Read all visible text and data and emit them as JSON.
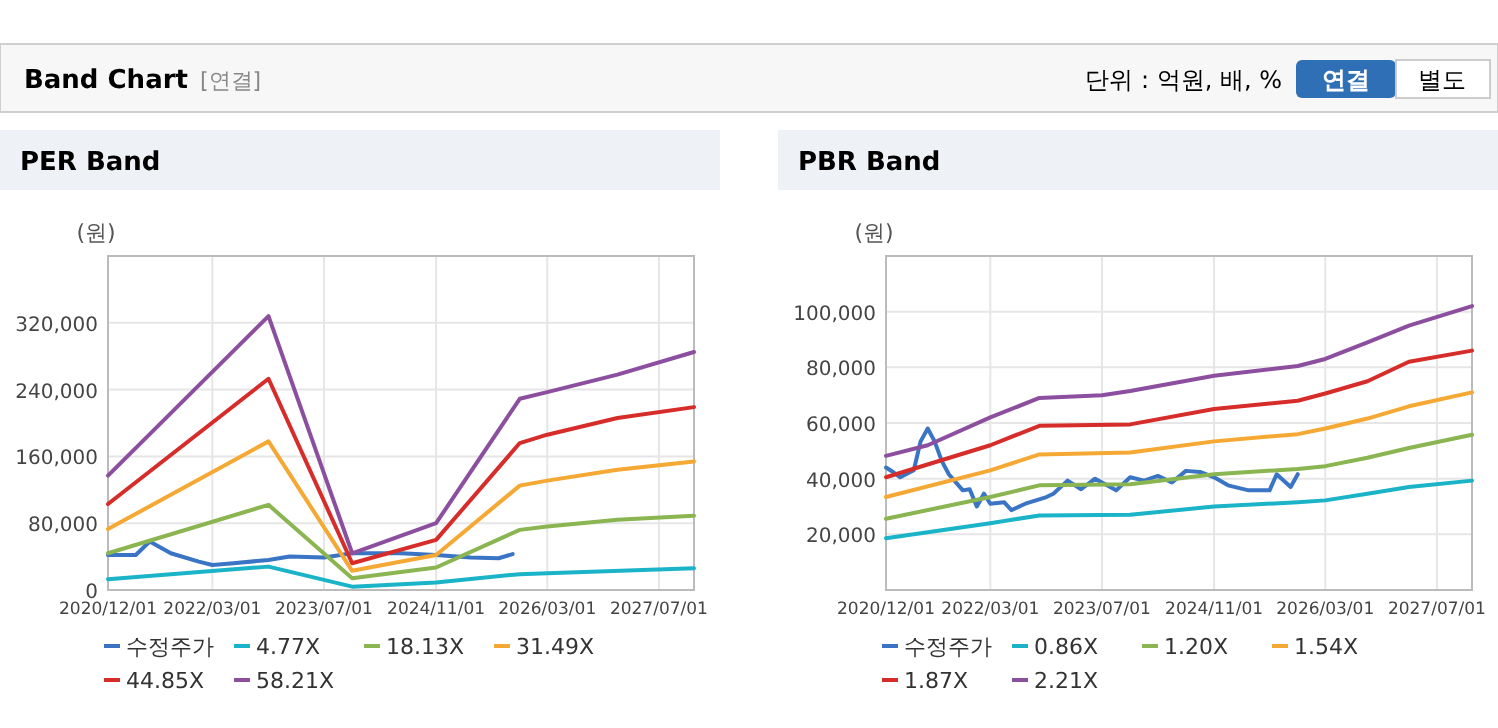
{
  "chart_data": [
    {
      "type": "other",
      "title": "Band Chart",
      "annotations": [
        "[연결]",
        "단위 : 억원, 배, %",
        "연결",
        "별도"
      ]
    },
    {
      "type": "line",
      "title": "PER Band",
      "ylabel": "(원)",
      "xlim": [
        "2020-12-01",
        "2027-12-01"
      ],
      "xticks": [
        {
          "value": "2020-12-01",
          "label": "2020/12/01"
        },
        {
          "value": "2022-03-01",
          "label": "2022/03/01"
        },
        {
          "value": "2023-07-01",
          "label": "2023/07/01"
        },
        {
          "value": "2024-11-01",
          "label": "2024/11/01"
        },
        {
          "value": "2026-03-01",
          "label": "2026/03/01"
        },
        {
          "value": "2027-07-01",
          "label": "2027/07/01"
        }
      ],
      "ylim": [
        0,
        400000
      ],
      "yticks": [
        0,
        {
          "value": 80000,
          "label": "80,000"
        },
        {
          "value": 160000,
          "label": "160,000"
        },
        {
          "value": 240000,
          "label": "240,000"
        },
        {
          "value": 320000,
          "label": "320,000"
        }
      ],
      "grid": true,
      "legend": "bottom",
      "series": [
        {
          "name": "수정주가",
          "color": "#3a74c4",
          "x": [
            "2020-12",
            "2021-04",
            "2021-06",
            "2021-09",
            "2022-01",
            "2022-03",
            "2022-06",
            "2022-11",
            "2023-02",
            "2023-07",
            "2023-11",
            "2024-06",
            "2024-11",
            "2025-04",
            "2025-08",
            "2025-10"
          ],
          "values": [
            42000,
            42000,
            58000,
            44000,
            34000,
            30000,
            32000,
            36000,
            40000,
            39000,
            44000,
            44000,
            42000,
            39000,
            38000,
            43000
          ]
        },
        {
          "name": "4.77X",
          "color": "#1ab3c7",
          "x": [
            "2020-12",
            "2022-11",
            "2023-11",
            "2024-11",
            "2025-11",
            "2026-03",
            "2027-12"
          ],
          "values": [
            13000,
            28000,
            4000,
            9000,
            19000,
            20000,
            26000
          ]
        },
        {
          "name": "18.13X",
          "color": "#8ab551",
          "x": [
            "2020-12",
            "2022-11",
            "2023-11",
            "2024-11",
            "2025-11",
            "2026-03",
            "2027-01",
            "2027-12"
          ],
          "values": [
            44000,
            102000,
            14000,
            27000,
            72000,
            76000,
            84000,
            89000
          ]
        },
        {
          "name": "31.49X",
          "color": "#f5a833",
          "x": [
            "2020-12",
            "2022-11",
            "2023-11",
            "2024-11",
            "2025-11",
            "2026-03",
            "2027-01",
            "2027-12"
          ],
          "values": [
            73000,
            178000,
            23000,
            42000,
            125000,
            131000,
            144000,
            154000
          ]
        },
        {
          "name": "44.85X",
          "color": "#d62d2a",
          "x": [
            "2020-12",
            "2022-11",
            "2023-11",
            "2024-11",
            "2025-11",
            "2026-03",
            "2027-01",
            "2027-12"
          ],
          "values": [
            103000,
            253000,
            32000,
            60000,
            176000,
            186000,
            206000,
            219000
          ]
        },
        {
          "name": "58.21X",
          "color": "#8c4fa0",
          "x": [
            "2020-12",
            "2022-11",
            "2023-11",
            "2024-11",
            "2025-11",
            "2026-03",
            "2027-01",
            "2027-12"
          ],
          "values": [
            137000,
            328000,
            44000,
            80000,
            229000,
            237000,
            258000,
            285000
          ]
        }
      ]
    },
    {
      "type": "line",
      "title": "PBR Band",
      "ylabel": "(원)",
      "xlim": [
        "2020-12-01",
        "2027-12-01"
      ],
      "xticks": [
        {
          "value": "2020-12-01",
          "label": "2020/12/01"
        },
        {
          "value": "2022-03-01",
          "label": "2022/03/01"
        },
        {
          "value": "2023-07-01",
          "label": "2023/07/01"
        },
        {
          "value": "2024-11-01",
          "label": "2024/11/01"
        },
        {
          "value": "2026-03-01",
          "label": "2026/03/01"
        },
        {
          "value": "2027-07-01",
          "label": "2027/07/01"
        }
      ],
      "ylim": [
        0,
        120000
      ],
      "yticks": [
        {
          "value": 20000,
          "label": "20,000"
        },
        {
          "value": 40000,
          "label": "40,000"
        },
        {
          "value": 60000,
          "label": "60,000"
        },
        {
          "value": 80000,
          "label": "80,000"
        },
        {
          "value": 100000,
          "label": "100,000"
        }
      ],
      "grid": true,
      "legend": "bottom",
      "series": [
        {
          "name": "수정주가",
          "color": "#3a74c4",
          "x": [
            "2020-12",
            "2021-01",
            "2021-02",
            "2021-04",
            "2021-05",
            "2021-06",
            "2021-07",
            "2021-08",
            "2021-09",
            "2021-11",
            "2021-12",
            "2022-01",
            "2022-02",
            "2022-03",
            "2022-05",
            "2022-06",
            "2022-08",
            "2022-11",
            "2022-12",
            "2023-02",
            "2023-04",
            "2023-06",
            "2023-09",
            "2023-11",
            "2024-01",
            "2024-03",
            "2024-05",
            "2024-07",
            "2024-09",
            "2024-11",
            "2025-01",
            "2025-04",
            "2025-07",
            "2025-08",
            "2025-10",
            "2025-11"
          ],
          "values": [
            44000,
            42400,
            40500,
            43000,
            53400,
            58000,
            53400,
            46400,
            41600,
            35800,
            36200,
            30000,
            34600,
            31000,
            31500,
            28700,
            31000,
            33400,
            34600,
            39300,
            36200,
            40000,
            35800,
            40500,
            39300,
            41000,
            38600,
            42800,
            42400,
            40500,
            37600,
            35800,
            35800,
            41600,
            37000,
            41600
          ]
        },
        {
          "name": "0.86X",
          "color": "#1ab3c7",
          "x": [
            "2020-12",
            "2022-03",
            "2022-10",
            "2023-11",
            "2024-11",
            "2025-11",
            "2026-03",
            "2026-09",
            "2027-03",
            "2027-12"
          ],
          "values": [
            18600,
            24000,
            26800,
            27000,
            30000,
            31500,
            32200,
            34600,
            37000,
            39300
          ]
        },
        {
          "name": "1.20X",
          "color": "#8ab551",
          "x": [
            "2020-12",
            "2022-03",
            "2022-10",
            "2023-11",
            "2024-11",
            "2025-11",
            "2026-03",
            "2026-09",
            "2027-03",
            "2027-12"
          ],
          "values": [
            25600,
            33400,
            37600,
            38000,
            41600,
            43500,
            44500,
            47500,
            51000,
            55800
          ]
        },
        {
          "name": "1.54X",
          "color": "#f5a833",
          "x": [
            "2020-12",
            "2022-03",
            "2022-10",
            "2023-11",
            "2024-11",
            "2025-11",
            "2026-03",
            "2026-09",
            "2027-03",
            "2027-12"
          ],
          "values": [
            33400,
            43000,
            48700,
            49400,
            53400,
            56000,
            58000,
            61600,
            66000,
            71000
          ]
        },
        {
          "name": "1.87X",
          "color": "#d62d2a",
          "x": [
            "2020-12",
            "2022-03",
            "2022-10",
            "2023-11",
            "2024-11",
            "2025-11",
            "2026-03",
            "2026-09",
            "2027-03",
            "2027-12"
          ],
          "values": [
            40500,
            52000,
            59000,
            59500,
            65000,
            68000,
            70600,
            75000,
            82000,
            86000
          ]
        },
        {
          "name": "2.21X",
          "color": "#8c4fa0",
          "x": [
            "2020-12",
            "2021-06",
            "2022-03",
            "2022-10",
            "2023-07",
            "2023-11",
            "2024-11",
            "2025-11",
            "2026-03",
            "2026-09",
            "2027-03",
            "2027-12"
          ],
          "values": [
            48200,
            52000,
            62000,
            69000,
            70000,
            71500,
            77000,
            80500,
            83000,
            89000,
            95000,
            102000
          ]
        }
      ]
    }
  ]
}
